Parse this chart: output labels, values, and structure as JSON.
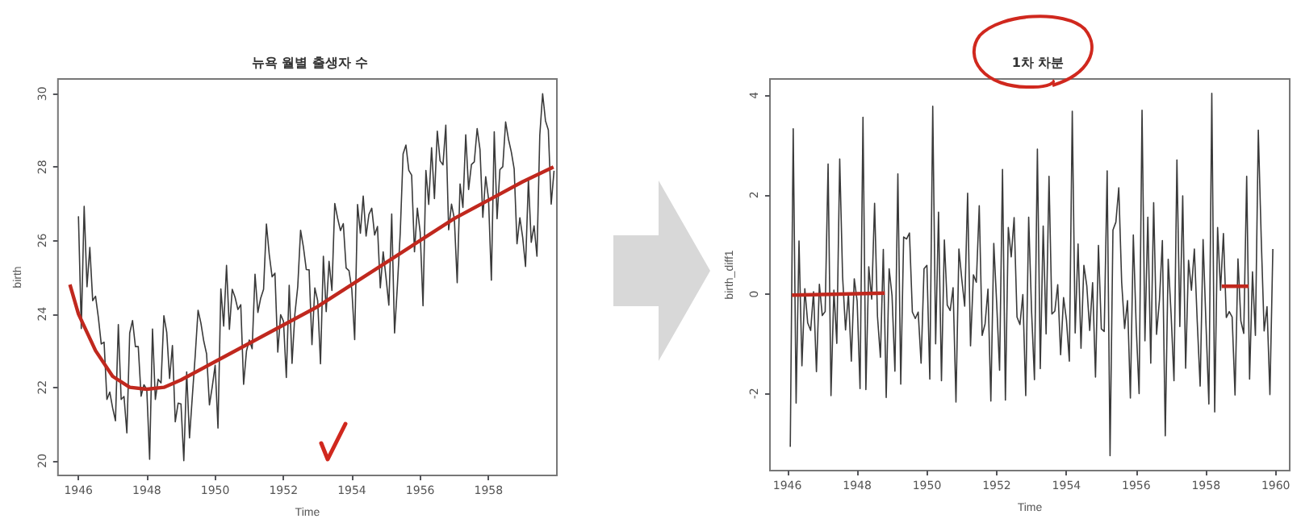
{
  "chart_data": [
    {
      "type": "line",
      "title": "뉴욕 월별 출생자 수",
      "xlabel": "Time",
      "ylabel": "birth",
      "xlim": [
        1945.4,
        1960
      ],
      "xticks": [
        1946,
        1948,
        1950,
        1952,
        1954,
        1956,
        1958
      ],
      "ylim": [
        19.6,
        30.4
      ],
      "yticks": [
        20,
        22,
        24,
        26,
        28,
        30
      ],
      "grid": false,
      "marker": "none",
      "x": [
        1946,
        1946.083,
        1946.167,
        1946.25,
        1946.333,
        1946.417,
        1946.5,
        1946.583,
        1946.667,
        1946.75,
        1946.833,
        1946.917,
        1947,
        1947.083,
        1947.167,
        1947.25,
        1947.333,
        1947.417,
        1947.5,
        1947.583,
        1947.667,
        1947.75,
        1947.833,
        1947.917,
        1948,
        1948.083,
        1948.167,
        1948.25,
        1948.333,
        1948.417,
        1948.5,
        1948.583,
        1948.667,
        1948.75,
        1948.833,
        1948.917,
        1949,
        1949.083,
        1949.167,
        1949.25,
        1949.333,
        1949.417,
        1949.5,
        1949.583,
        1949.667,
        1949.75,
        1949.833,
        1949.917,
        1950,
        1950.083,
        1950.167,
        1950.25,
        1950.333,
        1950.417,
        1950.5,
        1950.583,
        1950.667,
        1950.75,
        1950.833,
        1950.917,
        1951,
        1951.083,
        1951.167,
        1951.25,
        1951.333,
        1951.417,
        1951.5,
        1951.583,
        1951.667,
        1951.75,
        1951.833,
        1951.917,
        1952,
        1952.083,
        1952.167,
        1952.25,
        1952.333,
        1952.417,
        1952.5,
        1952.583,
        1952.667,
        1952.75,
        1952.833,
        1952.917,
        1953,
        1953.083,
        1953.167,
        1953.25,
        1953.333,
        1953.417,
        1953.5,
        1953.583,
        1953.667,
        1953.75,
        1953.833,
        1953.917,
        1954,
        1954.083,
        1954.167,
        1954.25,
        1954.333,
        1954.417,
        1954.5,
        1954.583,
        1954.667,
        1954.75,
        1954.833,
        1954.917,
        1955,
        1955.083,
        1955.167,
        1955.25,
        1955.333,
        1955.417,
        1955.5,
        1955.583,
        1955.667,
        1955.75,
        1955.833,
        1955.917,
        1956,
        1956.083,
        1956.167,
        1956.25,
        1956.333,
        1956.417,
        1956.5,
        1956.583,
        1956.667,
        1956.75,
        1956.833,
        1956.917,
        1957,
        1957.083,
        1957.167,
        1957.25,
        1957.333,
        1957.417,
        1957.5,
        1957.583,
        1957.667,
        1957.75,
        1957.833,
        1957.917,
        1958,
        1958.083,
        1958.167,
        1958.25,
        1958.333,
        1958.417,
        1958.5,
        1958.583,
        1958.667,
        1958.75,
        1958.833,
        1958.917,
        1959,
        1959.083,
        1959.167,
        1959.25,
        1959.333,
        1959.417,
        1959.5,
        1959.583,
        1959.667,
        1959.75,
        1959.833,
        1959.917
      ],
      "series": [
        {
          "color": "#3a3a3a",
          "values": [
            26.66,
            23.6,
            26.93,
            24.74,
            25.81,
            24.36,
            24.48,
            23.9,
            23.18,
            23.23,
            21.67,
            21.87,
            21.44,
            21.09,
            23.71,
            21.67,
            21.75,
            20.76,
            23.48,
            23.82,
            23.11,
            23.11,
            21.76,
            22.07,
            21.94,
            20.04,
            23.59,
            21.67,
            22.22,
            22.12,
            23.95,
            23.5,
            22.24,
            23.14,
            21.06,
            21.57,
            21.55,
            20,
            22.42,
            20.62,
            21.76,
            22.87,
            24.1,
            23.75,
            23.26,
            22.91,
            21.52,
            22.03,
            22.6,
            20.89,
            24.68,
            23.67,
            25.32,
            23.58,
            24.67,
            24.45,
            24.12,
            24.25,
            22.08,
            22.99,
            23.29,
            23.05,
            25.08,
            24.04,
            24.43,
            24.67,
            26.45,
            25.62,
            25.01,
            25.11,
            22.96,
            23.98,
            23.8,
            22.27,
            24.78,
            22.65,
            23.99,
            24.74,
            26.28,
            25.82,
            25.21,
            25.2,
            23.16,
            24.71,
            24.36,
            22.64,
            25.57,
            24.06,
            25.43,
            24.64,
            27.01,
            26.61,
            26.27,
            26.46,
            25.25,
            25.18,
            24.66,
            23.3,
            26.98,
            26.2,
            27.21,
            26.12,
            26.71,
            26.88,
            26.15,
            26.38,
            24.71,
            25.69,
            24.99,
            24.24,
            26.72,
            23.48,
            24.77,
            26.22,
            28.36,
            28.6,
            27.91,
            27.78,
            25.69,
            26.88,
            26.22,
            24.22,
            27.91,
            26.98,
            28.53,
            27.14,
            28.98,
            28.17,
            28.06,
            29.14,
            26.29,
            26.99,
            26.59,
            24.85,
            27.54,
            26.9,
            28.88,
            27.39,
            28.07,
            28.14,
            29.05,
            28.48,
            26.63,
            27.74,
            27.13,
            24.92,
            28.96,
            26.59,
            27.93,
            28.01,
            29.23,
            28.76,
            28.41,
            27.95,
            25.91,
            26.62,
            26.08,
            25.29,
            27.66,
            25.95,
            26.4,
            25.57,
            28.87,
            30,
            29.26,
            29.01,
            26.99,
            27.9
          ]
        },
        {
          "color": "#c0281e",
          "x": [
            1945.75,
            1946,
            1946.5,
            1947,
            1947.5,
            1948,
            1948.5,
            1949,
            1950,
            1951,
            1952,
            1953,
            1954,
            1955,
            1956,
            1957,
            1958,
            1959,
            1959.9
          ],
          "values": [
            24.8,
            24,
            23,
            22.3,
            22,
            21.95,
            22,
            22.2,
            22.7,
            23.2,
            23.7,
            24.2,
            24.8,
            25.4,
            26,
            26.6,
            27.1,
            27.6,
            28
          ]
        }
      ]
    },
    {
      "type": "line",
      "title": "1차 차분",
      "xlabel": "Time",
      "ylabel": "birth_diff1",
      "xlim": [
        1945.5,
        1960.4
      ],
      "xticks": [
        1946,
        1948,
        1950,
        1952,
        1954,
        1956,
        1958,
        1960
      ],
      "ylim": [
        -3.55,
        4.33
      ],
      "yticks": [
        -2,
        0,
        2,
        4
      ],
      "grid": false,
      "marker": "none",
      "x": [
        1946.083,
        1946.167,
        1946.25,
        1946.333,
        1946.417,
        1946.5,
        1946.583,
        1946.667,
        1946.75,
        1946.833,
        1946.917,
        1947,
        1947.083,
        1947.167,
        1947.25,
        1947.333,
        1947.417,
        1947.5,
        1947.583,
        1947.667,
        1947.75,
        1947.833,
        1947.917,
        1948,
        1948.083,
        1948.167,
        1948.25,
        1948.333,
        1948.417,
        1948.5,
        1948.583,
        1948.667,
        1948.75,
        1948.833,
        1948.917,
        1949,
        1949.083,
        1949.167,
        1949.25,
        1949.333,
        1949.417,
        1949.5,
        1949.583,
        1949.667,
        1949.75,
        1949.833,
        1949.917,
        1950,
        1950.083,
        1950.167,
        1950.25,
        1950.333,
        1950.417,
        1950.5,
        1950.583,
        1950.667,
        1950.75,
        1950.833,
        1950.917,
        1951,
        1951.083,
        1951.167,
        1951.25,
        1951.333,
        1951.417,
        1951.5,
        1951.583,
        1951.667,
        1951.75,
        1951.833,
        1951.917,
        1952,
        1952.083,
        1952.167,
        1952.25,
        1952.333,
        1952.417,
        1952.5,
        1952.583,
        1952.667,
        1952.75,
        1952.833,
        1952.917,
        1953,
        1953.083,
        1953.167,
        1953.25,
        1953.333,
        1953.417,
        1953.5,
        1953.583,
        1953.667,
        1953.75,
        1953.833,
        1953.917,
        1954,
        1954.083,
        1954.167,
        1954.25,
        1954.333,
        1954.417,
        1954.5,
        1954.583,
        1954.667,
        1954.75,
        1954.833,
        1954.917,
        1955,
        1955.083,
        1955.167,
        1955.25,
        1955.333,
        1955.417,
        1955.5,
        1955.583,
        1955.667,
        1955.75,
        1955.833,
        1955.917,
        1956,
        1956.083,
        1956.167,
        1956.25,
        1956.333,
        1956.417,
        1956.5,
        1956.583,
        1956.667,
        1956.75,
        1956.833,
        1956.917,
        1957,
        1957.083,
        1957.167,
        1957.25,
        1957.333,
        1957.417,
        1957.5,
        1957.583,
        1957.667,
        1957.75,
        1957.833,
        1957.917,
        1958,
        1958.083,
        1958.167,
        1958.25,
        1958.333,
        1958.417,
        1958.5,
        1958.583,
        1958.667,
        1958.75,
        1958.833,
        1958.917,
        1959,
        1959.083,
        1959.167,
        1959.25,
        1959.333,
        1959.417,
        1959.5,
        1959.583,
        1959.667,
        1959.75,
        1959.833,
        1959.917
      ],
      "series": [
        {
          "color": "#3a3a3a",
          "values": [
            -3.07,
            3.33,
            -2.19,
            1.07,
            -1.44,
            0.11,
            -0.58,
            -0.73,
            0.05,
            -1.56,
            0.2,
            -0.43,
            -0.35,
            2.62,
            -2.04,
            0.08,
            -0.99,
            2.72,
            0.35,
            -0.72,
            0.01,
            -1.35,
            0.31,
            -0.14,
            -1.9,
            3.56,
            -1.92,
            0.55,
            -0.1,
            1.83,
            -0.45,
            -1.27,
            0.9,
            -2.08,
            0.51,
            -0.03,
            -1.55,
            2.42,
            -1.81,
            1.15,
            1.11,
            1.23,
            -0.36,
            -0.49,
            -0.36,
            -1.39,
            0.51,
            0.58,
            -1.71,
            3.78,
            -1,
            1.65,
            -1.74,
            1.09,
            -0.22,
            -0.33,
            0.13,
            -2.17,
            0.91,
            0.3,
            -0.24,
            2.03,
            -1.04,
            0.39,
            0.24,
            1.78,
            -0.83,
            -0.6,
            0.1,
            -2.15,
            1.02,
            -0.18,
            -1.53,
            2.51,
            -2.13,
            1.34,
            0.75,
            1.54,
            -0.46,
            -0.61,
            -0.01,
            -2.04,
            1.55,
            -0.34,
            -1.72,
            2.92,
            -1.5,
            1.37,
            -0.8,
            2.37,
            -0.4,
            -0.34,
            0.19,
            -1.22,
            -0.07,
            -0.52,
            -1.35,
            3.68,
            -0.78,
            1.01,
            -1.09,
            0.58,
            0.17,
            -0.73,
            0.23,
            -1.67,
            0.98,
            -0.7,
            -0.75,
            2.48,
            -3.25,
            1.29,
            1.45,
            2.14,
            0.24,
            -0.69,
            -0.13,
            -2.09,
            1.19,
            -0.66,
            -2,
            3.7,
            -0.94,
            1.55,
            -1.39,
            1.84,
            -0.81,
            -0.11,
            1.08,
            -2.85,
            0.7,
            -0.4,
            -1.74,
            2.7,
            -0.65,
            1.98,
            -1.49,
            0.68,
            0.08,
            0.91,
            -0.56,
            -1.85,
            1.1,
            -0.6,
            -2.21,
            4.04,
            -2.37,
            1.34,
            0.08,
            1.22,
            -0.47,
            -0.35,
            -0.46,
            -2.03,
            0.71,
            -0.54,
            -0.79,
            2.37,
            -1.71,
            0.45,
            -0.83,
            3.3,
            1.14,
            -0.74,
            -0.25,
            -2.02,
            0.91
          ]
        },
        {
          "color": "#c0281e",
          "x": [
            1946.13,
            1948.79
          ],
          "values": [
            -0.02,
            0.02
          ]
        },
        {
          "color": "#c0281e",
          "x": [
            1958.45,
            1959.22
          ],
          "values": [
            0.16,
            0.16
          ]
        }
      ]
    }
  ]
}
